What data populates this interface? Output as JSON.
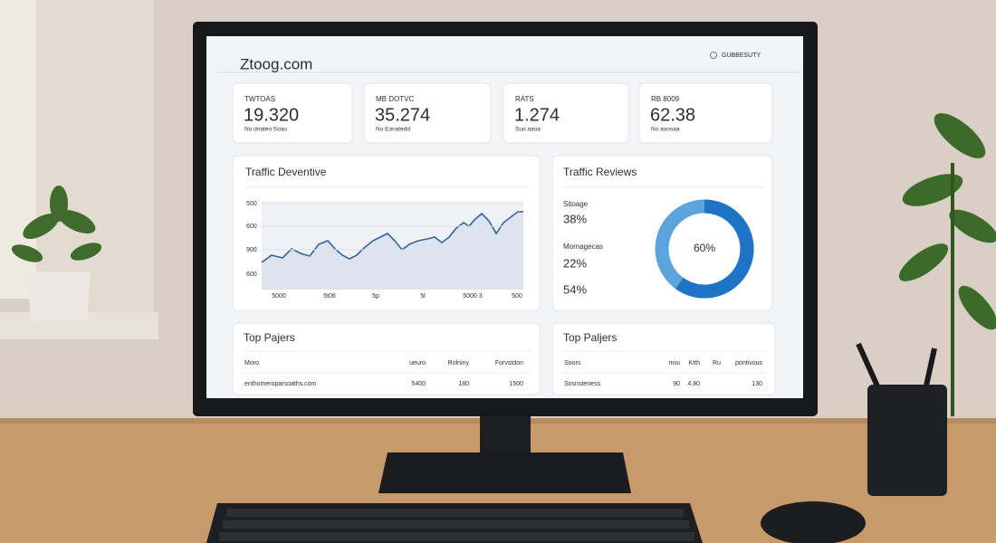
{
  "header": {
    "site": "Ztoog.com",
    "account": "GUBBESUTY"
  },
  "kpis": [
    {
      "label": "TWTOAS",
      "value": "19.320",
      "note": "No dnatéo Soao"
    },
    {
      "label": "MB DOTVC",
      "value": "35.274",
      "note": "No Eonatedd"
    },
    {
      "label": "RATS",
      "value": "1.274",
      "note": "Suo aaoa"
    },
    {
      "label": "RB 8009",
      "value": "62.38",
      "note": "No aoosaa"
    }
  ],
  "traffic_panel": {
    "title": "Traffic Deventive",
    "y_labels": [
      "500",
      "600",
      "900",
      "600"
    ],
    "x_labels": [
      "5000",
      "5t06",
      "5p",
      "5l",
      "5000 3",
      "500"
    ]
  },
  "reviews_panel": {
    "title": "Traffic Reviews",
    "legend": [
      {
        "label": "Sitoage",
        "value": "38%"
      },
      {
        "label": "Mornagecas",
        "value": "22%"
      },
      {
        "label": null,
        "value": "54%"
      }
    ],
    "donut": {
      "value": 60,
      "label": "60%"
    }
  },
  "tables": [
    {
      "title": "Top Pajers",
      "columns": [
        "Moro",
        "ueuro",
        "Rolniny",
        "Forvstdon"
      ],
      "rows": [
        [
          "enthomeroparsoaths.com",
          "5400",
          "180",
          "1500"
        ]
      ]
    },
    {
      "title": "Top Paljers",
      "columns": [
        "Soors",
        "misi",
        "Ktth",
        "Ru",
        "pontivous"
      ],
      "rows": [
        [
          "Sosnsteness",
          "90",
          "4.80",
          "",
          "130"
        ]
      ]
    }
  ]
}
